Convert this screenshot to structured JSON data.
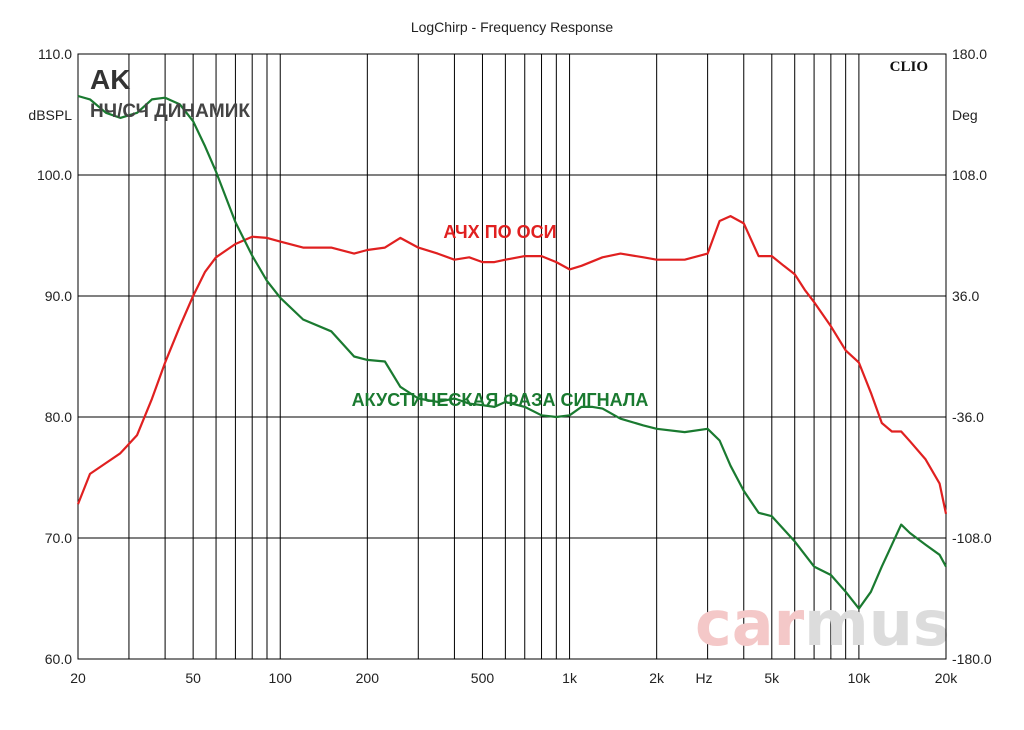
{
  "chart_data": {
    "type": "line",
    "title": "LogChirp - Frequency Response",
    "brand_top_left": "AK",
    "subtitle": "НЧ/СЧ ДИНАМИК",
    "software_label": "CLIO",
    "watermark": {
      "text_a": "car",
      "text_b": "mus",
      "color_a": "#f4c8c8",
      "color_b": "#dcdcdc"
    },
    "xlabel": "Hz",
    "ylabel_left": "dBSPL",
    "ylabel_right": "Deg",
    "x_scale": "log",
    "xlim": [
      20,
      20000
    ],
    "ylim_left": [
      60,
      110
    ],
    "ylim_right": [
      -180,
      180
    ],
    "grid": true,
    "x_ticks": [
      {
        "v": 20,
        "label": "20"
      },
      {
        "v": 50,
        "label": "50"
      },
      {
        "v": 100,
        "label": "100"
      },
      {
        "v": 200,
        "label": "200"
      },
      {
        "v": 500,
        "label": "500"
      },
      {
        "v": 1000,
        "label": "1k"
      },
      {
        "v": 2000,
        "label": "2k"
      },
      {
        "v": 5000,
        "label": "5k"
      },
      {
        "v": 10000,
        "label": "10k"
      },
      {
        "v": 20000,
        "label": "20k"
      }
    ],
    "y_ticks_left": [
      "60.0",
      "70.0",
      "80.0",
      "90.0",
      "100.0",
      "110.0"
    ],
    "y_ticks_right": [
      "-180.0",
      "-108.0",
      "-36.0",
      "36.0",
      "108.0",
      "180.0"
    ],
    "series": [
      {
        "name": "АЧХ ПО ОСИ",
        "color": "#e02020",
        "axis": "left",
        "x": [
          20,
          22,
          25,
          28,
          32,
          36,
          40,
          45,
          50,
          55,
          60,
          70,
          80,
          90,
          100,
          120,
          150,
          180,
          200,
          230,
          260,
          300,
          350,
          400,
          450,
          500,
          550,
          600,
          700,
          800,
          900,
          1000,
          1100,
          1300,
          1500,
          1800,
          2000,
          2500,
          3000,
          3300,
          3600,
          4000,
          4500,
          5000,
          5500,
          6000,
          6500,
          7000,
          8000,
          9000,
          10000,
          11000,
          12000,
          13000,
          14000,
          15000,
          17000,
          19000,
          20000
        ],
        "values": [
          72.8,
          75.3,
          76.2,
          77.0,
          78.5,
          81.5,
          84.5,
          87.5,
          90.0,
          92.0,
          93.2,
          94.3,
          94.9,
          94.8,
          94.5,
          94.0,
          94.0,
          93.5,
          93.8,
          94.0,
          94.8,
          94.0,
          93.5,
          93.0,
          93.2,
          92.8,
          92.8,
          93.0,
          93.3,
          93.3,
          92.8,
          92.2,
          92.5,
          93.2,
          93.5,
          93.2,
          93.0,
          93.0,
          93.5,
          96.2,
          96.6,
          96.0,
          93.3,
          93.3,
          92.5,
          91.8,
          90.5,
          89.5,
          87.5,
          85.5,
          84.5,
          82.0,
          79.5,
          78.8,
          78.8,
          78.0,
          76.5,
          74.5,
          72.0
        ]
      },
      {
        "name": "АКУСТИЧЕСКАЯ ФАЗА СИГНАЛА",
        "color": "#1a7a30",
        "axis": "right",
        "x": [
          20,
          22,
          25,
          28,
          32,
          36,
          40,
          45,
          50,
          55,
          60,
          70,
          80,
          90,
          100,
          120,
          150,
          180,
          200,
          230,
          260,
          300,
          350,
          400,
          450,
          500,
          550,
          600,
          700,
          800,
          900,
          1000,
          1100,
          1200,
          1300,
          1500,
          1800,
          2000,
          2500,
          3000,
          3300,
          3600,
          4000,
          4500,
          5000,
          6000,
          7000,
          8000,
          9000,
          10000,
          11000,
          12000,
          13000,
          14000,
          15000,
          17000,
          19000,
          20000
        ],
        "values": [
          155,
          153,
          145,
          142,
          145,
          153,
          154,
          150,
          140,
          125,
          110,
          80,
          60,
          45,
          35,
          22,
          15,
          0,
          -2,
          -3,
          -18,
          -25,
          -27,
          -25,
          -28,
          -29,
          -30,
          -27,
          -30,
          -35,
          -36,
          -35,
          -30,
          -30,
          -31,
          -37,
          -41,
          -43,
          -45,
          -43,
          -50,
          -65,
          -80,
          -93,
          -95,
          -110,
          -125,
          -130,
          -140,
          -150,
          -140,
          -125,
          -112,
          -100,
          -105,
          -112,
          -118,
          -125
        ]
      }
    ]
  }
}
